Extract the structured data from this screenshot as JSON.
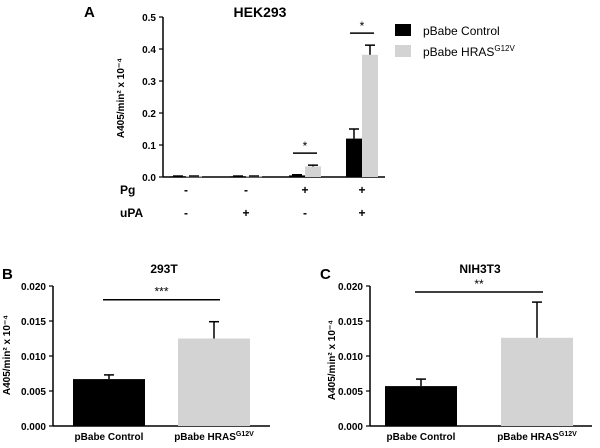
{
  "chart_data": [
    {
      "id": "panelA",
      "type": "bar",
      "panel_label": "A",
      "title": "HEK293",
      "ylabel": "A405/min² x 10⁻⁴",
      "ylim": [
        0,
        0.5
      ],
      "yticks": [
        "0.0",
        "0.1",
        "0.2",
        "0.3",
        "0.4",
        "0.5"
      ],
      "condition_rows": [
        {
          "name": "Pg",
          "values": [
            "-",
            "-",
            "+",
            "+"
          ]
        },
        {
          "name": "uPA",
          "values": [
            "-",
            "+",
            "-",
            "+"
          ]
        }
      ],
      "legend": {
        "position": "top-right",
        "entries": [
          "pBabe Control",
          "pBabe HRAS"
        ],
        "superscript": "G12V"
      },
      "series": [
        {
          "name": "pBabe Control",
          "color": "#000000",
          "values": [
            0.002,
            0.002,
            0.005,
            0.12
          ],
          "errors": [
            0.001,
            0.001,
            0.002,
            0.03
          ]
        },
        {
          "name": "pBabe HRAS G12V",
          "color": "#d3d3d3",
          "values": [
            0.002,
            0.002,
            0.033,
            0.382
          ],
          "errors": [
            0.001,
            0.001,
            0.004,
            0.03
          ]
        }
      ],
      "significance": [
        {
          "group": 2,
          "label": "*"
        },
        {
          "group": 3,
          "label": "*"
        }
      ]
    },
    {
      "id": "panelB",
      "type": "bar",
      "panel_label": "B",
      "title": "293T",
      "ylabel": "A405/min² x 10⁻⁴",
      "ylim": [
        0,
        0.02
      ],
      "yticks": [
        "0.000",
        "0.005",
        "0.010",
        "0.015",
        "0.020"
      ],
      "categories": [
        "pBabe Control",
        "pBabe HRAS"
      ],
      "category_superscripts": [
        "",
        "G12V"
      ],
      "values": [
        0.0067,
        0.0125
      ],
      "errors": [
        0.0006,
        0.0024
      ],
      "colors": [
        "#000000",
        "#d3d3d3"
      ],
      "significance": "***"
    },
    {
      "id": "panelC",
      "type": "bar",
      "panel_label": "C",
      "title": "NIH3T3",
      "ylabel": "A405/min² x 10⁻⁴",
      "ylim": [
        0,
        0.02
      ],
      "yticks": [
        "0.000",
        "0.005",
        "0.010",
        "0.015",
        "0.020"
      ],
      "categories": [
        "pBabe Control",
        "pBabe HRAS"
      ],
      "category_superscripts": [
        "",
        "G12V"
      ],
      "values": [
        0.0057,
        0.0126
      ],
      "errors": [
        0.001,
        0.0051
      ],
      "colors": [
        "#000000",
        "#d3d3d3"
      ],
      "significance": "**"
    }
  ]
}
